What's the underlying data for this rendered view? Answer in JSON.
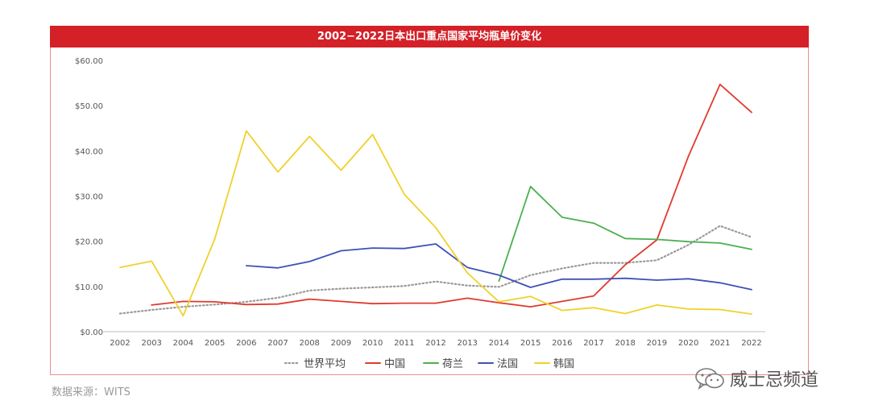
{
  "title": "2002−2022日本出口重点国家平均瓶单价变化",
  "source": "数据来源：WITS",
  "brand": {
    "name": "威士忌频道",
    "icon": "wechat-icon"
  },
  "colors": {
    "title_bg": "#d42027",
    "world": "#9a9a9a",
    "china": "#e03a2f",
    "netherlands": "#4caf50",
    "france": "#3f51b5",
    "korea": "#f0d12a"
  },
  "chart_data": {
    "type": "line",
    "title": "2002−2022日本出口重点国家平均瓶单价变化",
    "x": [
      "2002",
      "2003",
      "2004",
      "2005",
      "2006",
      "2007",
      "2008",
      "2009",
      "2010",
      "2011",
      "2012",
      "2013",
      "2014",
      "2015",
      "2016",
      "2017",
      "2018",
      "2019",
      "2020",
      "2021",
      "2022"
    ],
    "yticks": [
      "$0.00",
      "$10.00",
      "$20.00",
      "$30.00",
      "$40.00",
      "$50.00",
      "$60.00"
    ],
    "ylim": [
      0,
      60
    ],
    "grid": false,
    "legend": "bottom",
    "series": [
      {
        "name": "世界平均",
        "style": "dotted",
        "color": "#9a9a9a",
        "values": [
          4.0,
          4.8,
          5.5,
          6.0,
          6.6,
          7.5,
          9.1,
          9.5,
          9.8,
          10.1,
          11.1,
          10.2,
          9.9,
          12.5,
          14.0,
          15.2,
          15.2,
          15.8,
          19.2,
          23.4,
          20.9
        ]
      },
      {
        "name": "中国",
        "style": "solid",
        "color": "#e03a2f",
        "values": [
          null,
          5.9,
          6.7,
          6.6,
          6.0,
          6.1,
          7.2,
          6.7,
          6.2,
          6.3,
          6.3,
          7.4,
          6.4,
          5.5,
          6.7,
          7.9,
          14.8,
          20.3,
          38.8,
          54.7,
          48.5
        ]
      },
      {
        "name": "荷兰",
        "style": "solid",
        "color": "#4caf50",
        "values": [
          null,
          null,
          null,
          null,
          null,
          null,
          null,
          null,
          null,
          null,
          null,
          null,
          11.2,
          32.1,
          25.3,
          24.0,
          20.6,
          20.4,
          19.9,
          19.6,
          18.2
        ]
      },
      {
        "name": "法国",
        "style": "solid",
        "color": "#3f51b5",
        "values": [
          null,
          null,
          null,
          null,
          14.6,
          14.1,
          15.5,
          17.9,
          18.5,
          18.4,
          19.4,
          14.2,
          12.5,
          9.8,
          11.6,
          11.6,
          11.8,
          11.4,
          11.7,
          10.8,
          9.3
        ]
      },
      {
        "name": "韩国",
        "style": "solid",
        "color": "#f0d12a",
        "values": [
          14.2,
          15.6,
          3.5,
          20.5,
          44.4,
          35.3,
          43.2,
          35.7,
          43.6,
          30.4,
          23.0,
          13.0,
          6.6,
          7.8,
          4.7,
          5.3,
          4.0,
          5.9,
          5.0,
          4.9,
          3.9
        ]
      }
    ]
  }
}
